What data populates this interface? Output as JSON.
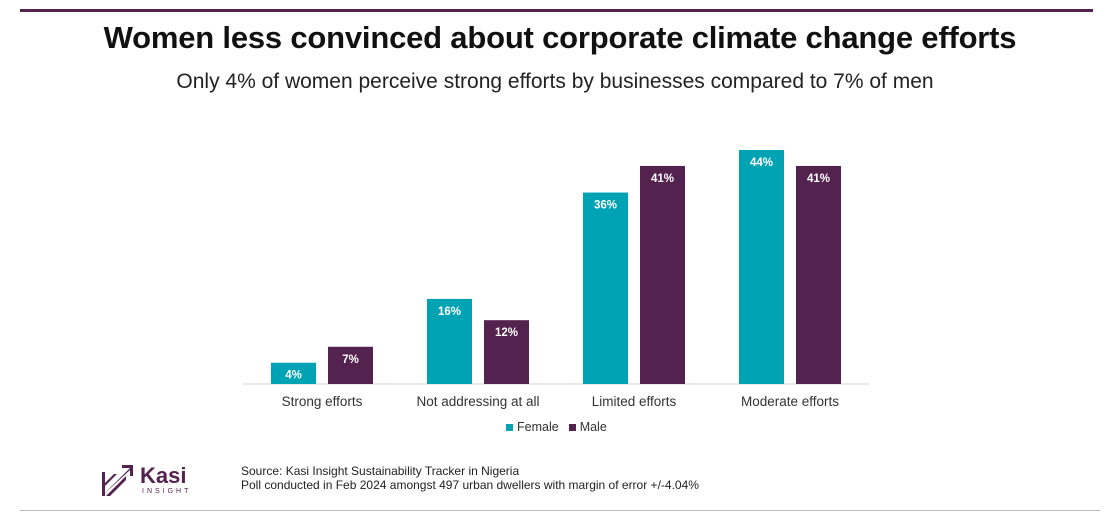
{
  "header": {
    "title": "Women less convinced about corporate climate change efforts",
    "subtitle": "Only 4% of women perceive strong efforts by businesses compared to 7% of men"
  },
  "colors": {
    "female": "#00a3b3",
    "male": "#53224f",
    "accent": "#53224f"
  },
  "chart_data": {
    "type": "bar",
    "title": "Women less convinced about corporate climate change efforts",
    "subtitle": "Only 4% of women perceive strong efforts by businesses compared to 7% of men",
    "categories": [
      "Strong efforts",
      "Not addressing at all",
      "Limited efforts",
      "Moderate efforts"
    ],
    "series": [
      {
        "name": "Female",
        "values": [
          4,
          16,
          36,
          44
        ],
        "labels": [
          "4%",
          "16%",
          "36%",
          "44%"
        ]
      },
      {
        "name": "Male",
        "values": [
          7,
          12,
          41,
          41
        ],
        "labels": [
          "7%",
          "12%",
          "41%",
          "41%"
        ]
      }
    ],
    "xlabel": "",
    "ylabel": "",
    "ylim": [
      0,
      44
    ],
    "grid": false,
    "legend": "bottom"
  },
  "legend": {
    "female_label": "Female",
    "male_label": "Male"
  },
  "logo": {
    "word": "Kasi",
    "sub": "INSIGHT"
  },
  "source": {
    "line1": "Source: Kasi Insight Sustainability Tracker in Nigeria",
    "line2": "Poll conducted  in Feb 2024 amongst 497 urban dwellers with margin of error +/-4.04%"
  }
}
